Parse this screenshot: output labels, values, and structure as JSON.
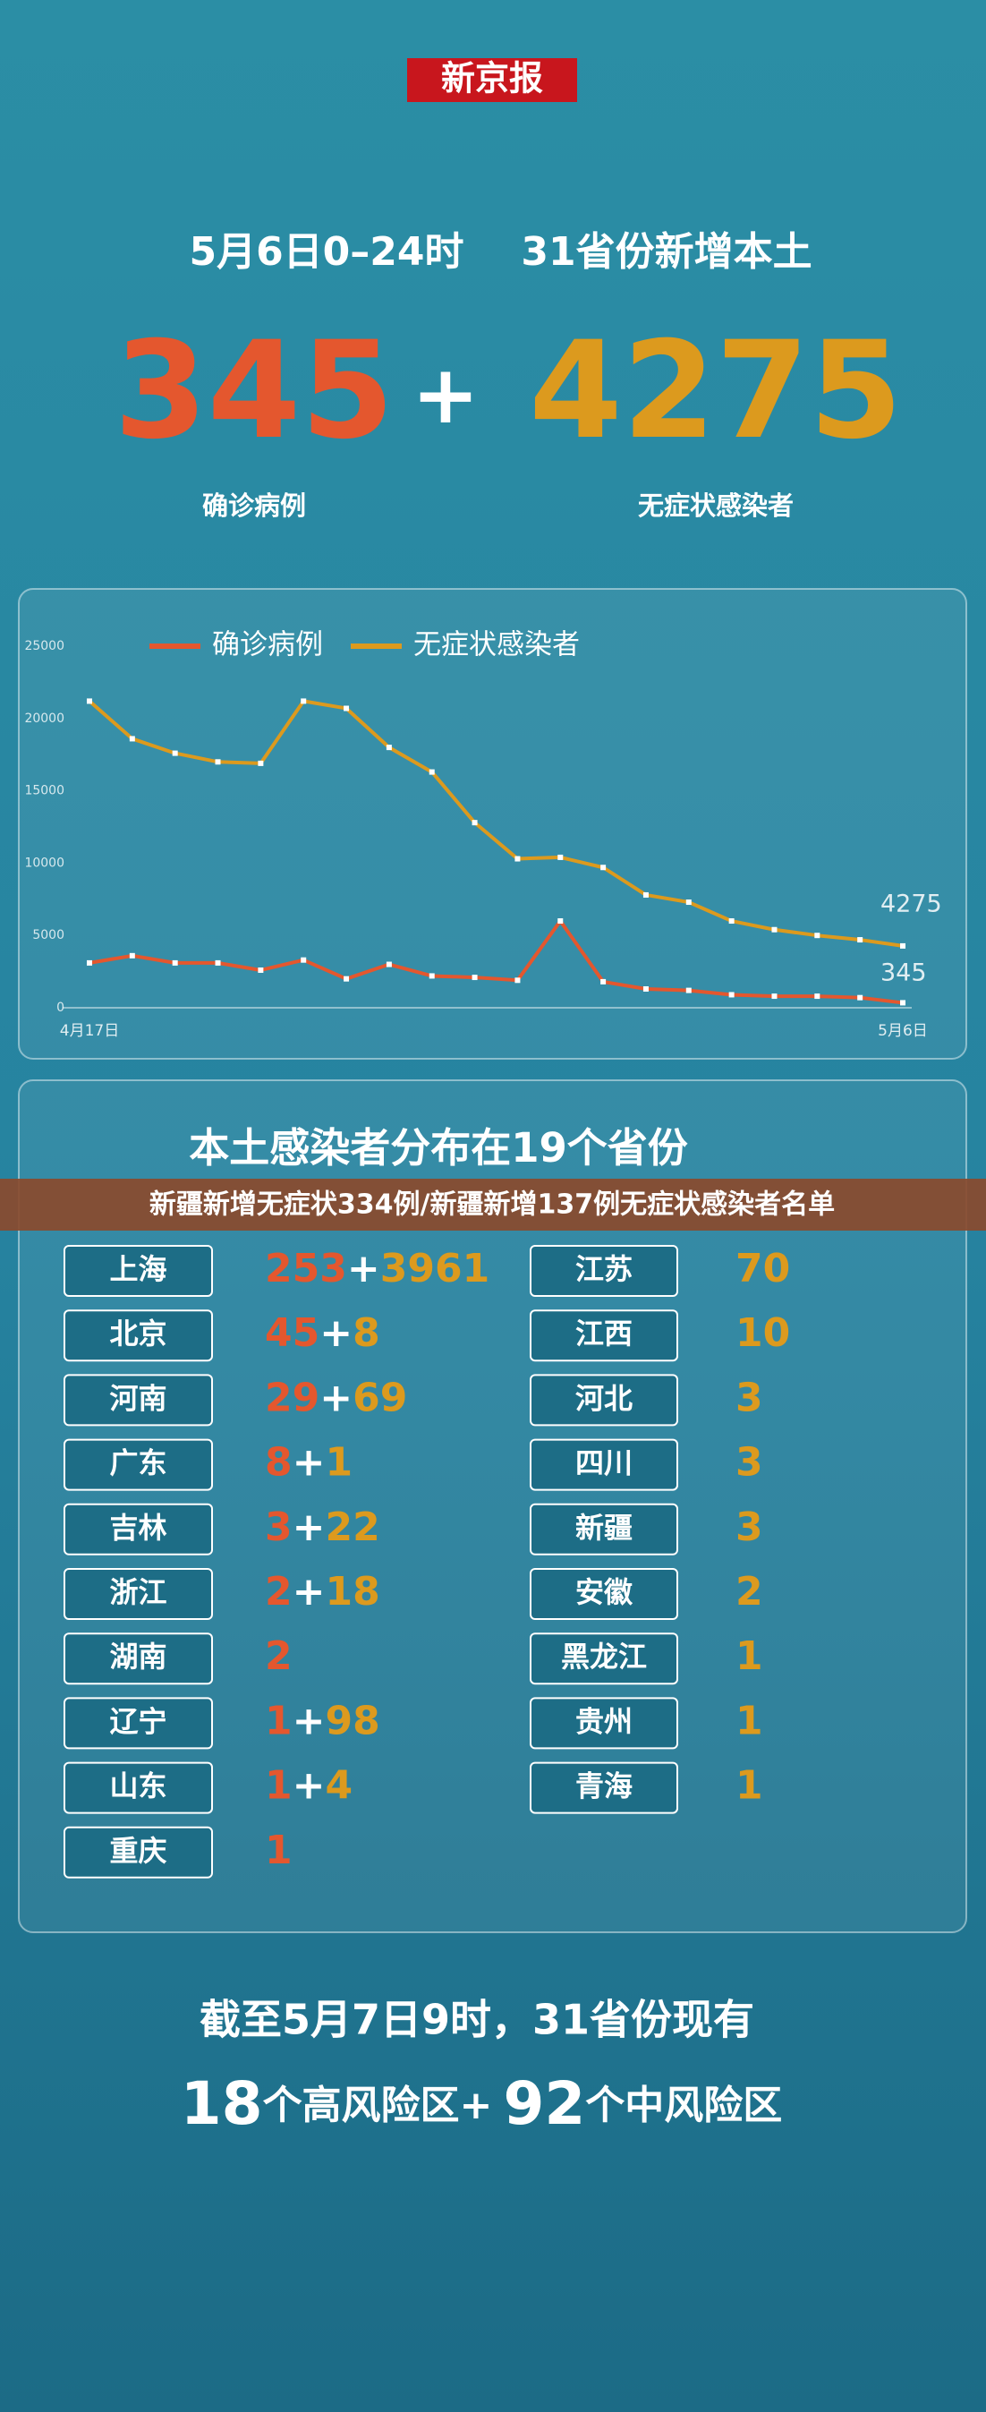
{
  "logo": "新京报",
  "headline": {
    "period": "5月6日0–24时",
    "scope": "31省份新增本土"
  },
  "summary": {
    "confirmed": 345,
    "plus": "+",
    "asymptomatic": 4275,
    "confirmed_label": "确诊病例",
    "asymptomatic_label": "无症状感染者"
  },
  "chart_data": {
    "type": "line",
    "categories": [
      "4月17日",
      null,
      null,
      null,
      null,
      null,
      null,
      null,
      null,
      null,
      null,
      null,
      null,
      null,
      null,
      null,
      null,
      null,
      null,
      "5月6日"
    ],
    "series": [
      {
        "name": "确诊病例",
        "color": "#e4572e",
        "values": [
          3100,
          3600,
          3100,
          3100,
          2600,
          3300,
          2000,
          3000,
          2200,
          2100,
          1900,
          6000,
          1800,
          1300,
          1200,
          900,
          800,
          800,
          700,
          345
        ]
      },
      {
        "name": "无症状感染者",
        "color": "#dc9a1e",
        "values": [
          21200,
          18600,
          17600,
          17000,
          16900,
          21200,
          20700,
          18000,
          16300,
          12800,
          10300,
          10400,
          9700,
          7800,
          7300,
          6000,
          5400,
          5000,
          4700,
          4275
        ]
      }
    ],
    "ylim": [
      0,
      25000
    ],
    "yticks": [
      0,
      5000,
      10000,
      15000,
      20000,
      25000
    ],
    "grid": false,
    "legend": "top"
  },
  "distribution": {
    "title": "本土感染者分布在19个省份",
    "plus": "+",
    "left": [
      {
        "province": "上海",
        "confirmed": 253,
        "asymptomatic": 3961
      },
      {
        "province": "北京",
        "confirmed": 45,
        "asymptomatic": 8
      },
      {
        "province": "河南",
        "confirmed": 29,
        "asymptomatic": 69
      },
      {
        "province": "广东",
        "confirmed": 8,
        "asymptomatic": 1
      },
      {
        "province": "吉林",
        "confirmed": 3,
        "asymptomatic": 22
      },
      {
        "province": "浙江",
        "confirmed": 2,
        "asymptomatic": 18
      },
      {
        "province": "湖南",
        "confirmed": 2
      },
      {
        "province": "辽宁",
        "confirmed": 1,
        "asymptomatic": 98
      },
      {
        "province": "山东",
        "confirmed": 1,
        "asymptomatic": 4
      },
      {
        "province": "重庆",
        "confirmed": 1
      }
    ],
    "right": [
      {
        "province": "江苏",
        "asymptomatic": 70
      },
      {
        "province": "江西",
        "asymptomatic": 10
      },
      {
        "province": "河北",
        "asymptomatic": 3
      },
      {
        "province": "四川",
        "asymptomatic": 3
      },
      {
        "province": "新疆",
        "asymptomatic": 3
      },
      {
        "province": "安徽",
        "asymptomatic": 2
      },
      {
        "province": "黑龙江",
        "asymptomatic": 1
      },
      {
        "province": "贵州",
        "asymptomatic": 1
      },
      {
        "province": "青海",
        "asymptomatic": 1
      }
    ]
  },
  "banner": "新疆新增无症状334例/新疆新增137例无症状感染者名单",
  "footer": {
    "line1": "截至5月7日9时，31省份现有",
    "high": 18,
    "high_label": "个高风险区+",
    "medium": 92,
    "medium_label": "个中风险区"
  }
}
